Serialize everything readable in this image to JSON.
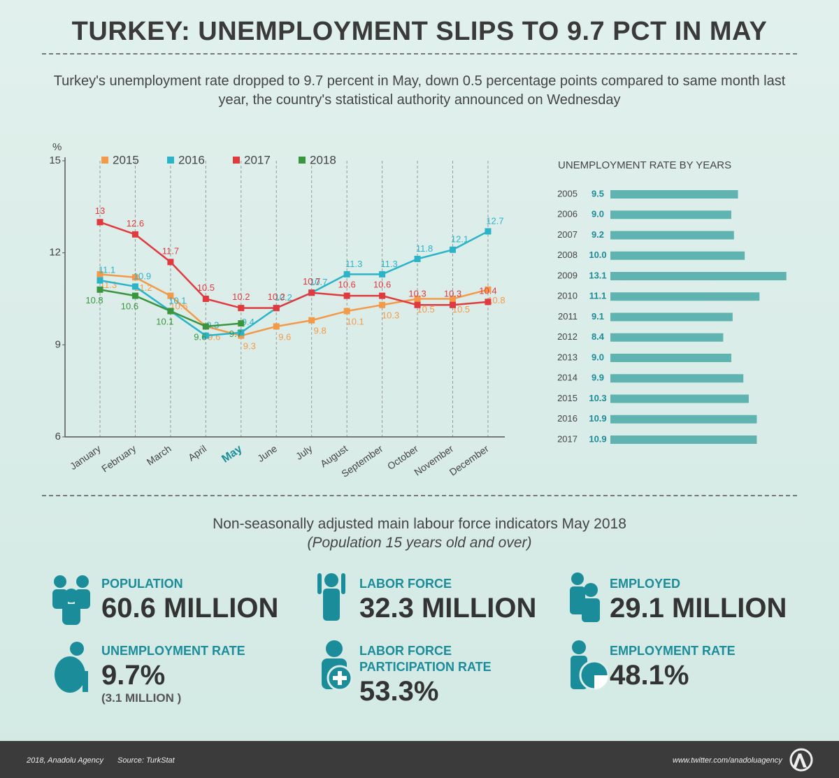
{
  "title": "TURKEY: UNEMPLOYMENT SLIPS TO 9.7 PCT IN MAY",
  "subtitle": "Turkey's unemployment rate dropped to 9.7 percent in May, down 0.5 percentage points compared to same month last year, the country's statistical authority announced on Wednesday",
  "chart_data": [
    {
      "type": "line",
      "y_label": "%",
      "categories": [
        "January",
        "February",
        "March",
        "April",
        "May",
        "June",
        "July",
        "August",
        "September",
        "October",
        "November",
        "December"
      ],
      "series": [
        {
          "name": "2015",
          "color": "#f39a4a",
          "values": [
            11.3,
            11.2,
            10.6,
            9.6,
            9.3,
            9.6,
            9.8,
            10.1,
            10.3,
            10.5,
            10.5,
            10.8
          ]
        },
        {
          "name": "2016",
          "color": "#2bb3c9",
          "values": [
            11.1,
            10.9,
            10.1,
            9.3,
            9.4,
            10.2,
            10.7,
            11.3,
            11.3,
            11.8,
            12.1,
            12.7
          ]
        },
        {
          "name": "2017",
          "color": "#e0393e",
          "values": [
            13,
            12.6,
            11.7,
            10.5,
            10.2,
            10.2,
            10.7,
            10.6,
            10.6,
            10.3,
            10.3,
            10.4
          ]
        },
        {
          "name": "2018",
          "color": "#3a953f",
          "values": [
            10.8,
            10.6,
            10.1,
            9.6,
            9.7,
            null,
            null,
            null,
            null,
            null,
            null,
            null
          ]
        }
      ],
      "ylim": [
        6,
        15
      ],
      "yticks": [
        6,
        9,
        12,
        15
      ],
      "grid": true
    },
    {
      "type": "hbar",
      "title": "UNEMPLOYMENT RATE BY YEARS",
      "categories": [
        "2005",
        "2006",
        "2007",
        "2008",
        "2009",
        "2010",
        "2011",
        "2012",
        "2013",
        "2014",
        "2015",
        "2016",
        "2017"
      ],
      "values": [
        9.5,
        9.0,
        9.2,
        10.0,
        13.1,
        11.1,
        9.1,
        8.4,
        9.0,
        9.9,
        10.3,
        10.9,
        10.9
      ],
      "value_labels": [
        "9.5",
        "9.0",
        "9.2",
        "10.0",
        "13.1",
        "11.1",
        "9.1",
        "8.4",
        "9.0",
        "9.9",
        "10.3",
        "10.9",
        "10.9"
      ],
      "color": "#5fb3b0",
      "xlim": [
        0,
        14
      ]
    }
  ],
  "indicators": {
    "title": "Non-seasonally adjusted main labour force indicators May 2018",
    "subtitle": "(Population 15 years old and over)",
    "items": [
      {
        "label": "POPULATION",
        "value": "60.6 MILLION"
      },
      {
        "label": "LABOR FORCE",
        "value": "32.3 MILLION"
      },
      {
        "label": "EMPLOYED",
        "value": "29.1 MILLION"
      },
      {
        "label": "UNEMPLOYMENT RATE",
        "value": "9.7%",
        "note": "(3.1 MILLION )"
      },
      {
        "label": "LABOR FORCE PARTICIPATION RATE",
        "value": "53.3%"
      },
      {
        "label": "EMPLOYMENT RATE",
        "value": "48.1%"
      }
    ]
  },
  "footer": {
    "copyright": "2018, Anadolu Agency",
    "source": "Source: TurkStat",
    "link": "www.twitter.com/anadoluagency"
  }
}
